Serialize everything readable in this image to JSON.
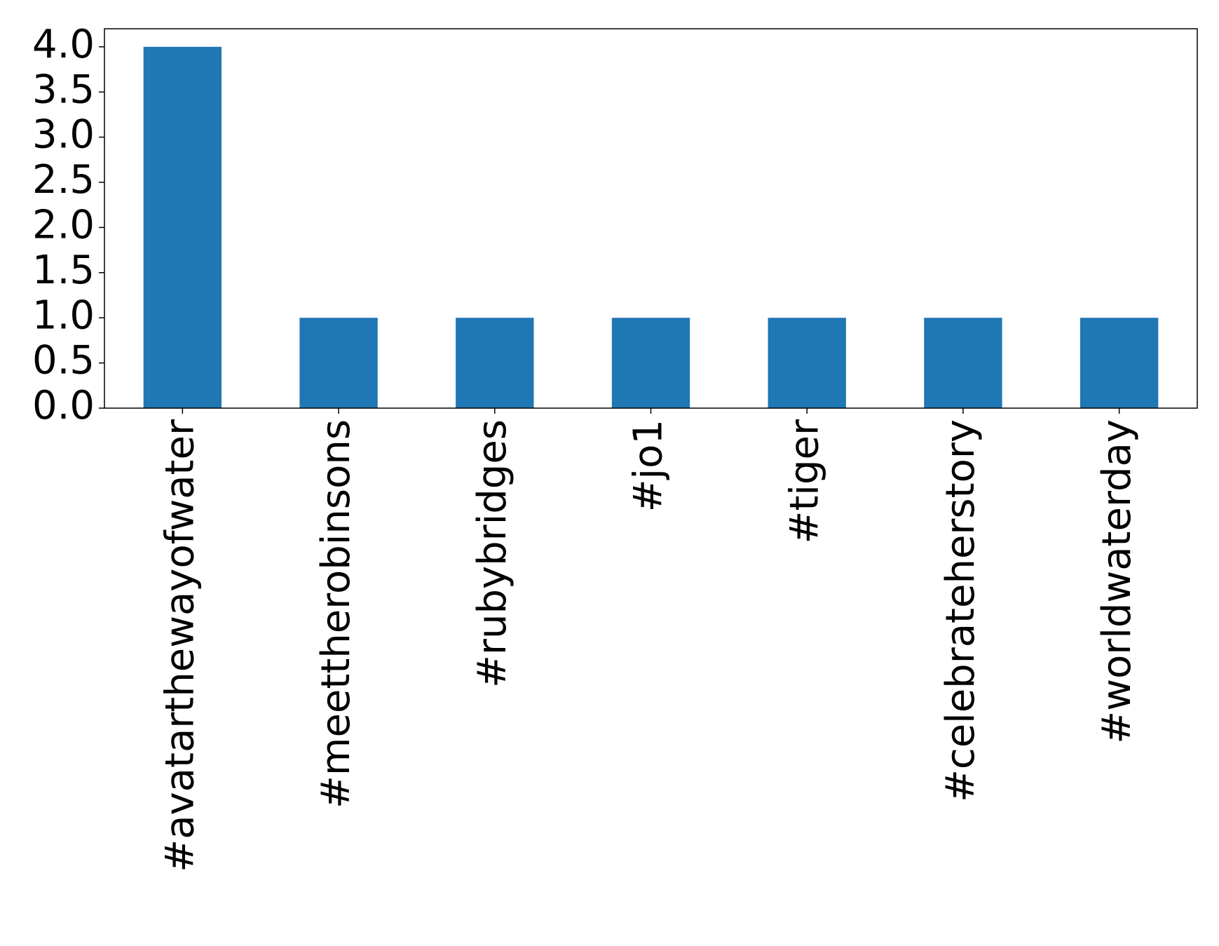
{
  "chart_data": {
    "type": "bar",
    "categories": [
      "#avatarthewayofwater",
      "#meettherobinsons",
      "#rubybridges",
      "#jo1",
      "#tiger",
      "#celebrateherstory",
      "#worldwaterday"
    ],
    "values": [
      4,
      1,
      1,
      1,
      1,
      1,
      1
    ],
    "color": "#1f77b4",
    "ylim": [
      0,
      4.2
    ],
    "yticks": [
      {
        "value": 0,
        "label": "0.0"
      },
      0.5,
      {
        "value": 1,
        "label": "1.0"
      },
      1.5,
      {
        "value": 2,
        "label": "2.0"
      },
      2.5,
      {
        "value": 3,
        "label": "3.0"
      },
      3.5,
      {
        "value": 4,
        "label": "4.0"
      }
    ],
    "grid": false
  }
}
